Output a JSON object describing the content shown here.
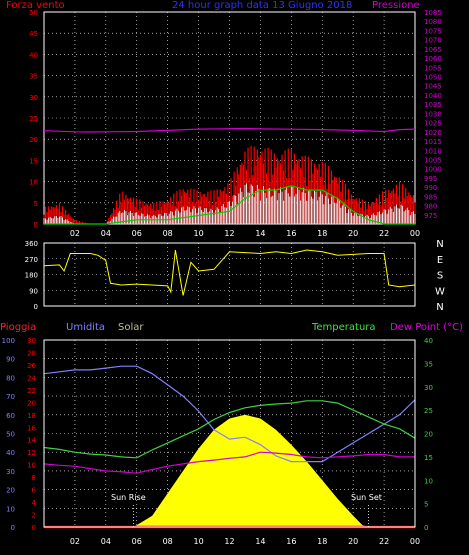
{
  "header": {
    "left": "Forza vento",
    "center": "24 hour graph data  13 Giugno 2018",
    "right": "Pressione"
  },
  "legend": {
    "pioggia": "Pioggia",
    "umidita": "Umidita",
    "solar": "Solar",
    "temperatura": "Temperatura",
    "dewpoint": "Dew Point (°C)"
  },
  "annotations": {
    "sunrise": "Sun Rise",
    "sunset": "Sun Set"
  },
  "colors": {
    "background": "#000000",
    "wind_speed": "#ff0000",
    "gust": "#ffffff",
    "wind_avg": "#00d000",
    "pressure": "#d000d0",
    "direction": "#ffff00",
    "solar": "#ffff00",
    "humidity": "#8080ff",
    "temperature": "#40d040",
    "dewpoint": "#d000d0",
    "rain": "#ff0000",
    "title_blue": "#3030ff",
    "axis_white": "#ffffff"
  },
  "chart_data": [
    {
      "type": "area",
      "title": "24 hour graph data  13 Giugno 2018",
      "xticks": [
        "02",
        "04",
        "06",
        "08",
        "10",
        "12",
        "14",
        "16",
        "18",
        "20",
        "22",
        "00"
      ],
      "yleft": {
        "label": "Forza vento",
        "range": [
          0,
          50
        ],
        "ticks": [
          0,
          5,
          10,
          15,
          20,
          25,
          30,
          35,
          40,
          45,
          50
        ]
      },
      "yright": {
        "label": "Pressione",
        "range": [
          970,
          1085
        ],
        "ticks": [
          975,
          980,
          985,
          990,
          995,
          1000,
          1005,
          1010,
          1015,
          1020,
          1025,
          1030,
          1035,
          1040,
          1045,
          1050,
          1055,
          1060,
          1065,
          1070,
          1075,
          1080,
          1085
        ]
      },
      "series": [
        {
          "name": "Pressione",
          "axis": "right",
          "x": [
            0,
            2,
            3,
            4,
            6,
            8,
            10,
            12,
            13,
            14,
            16,
            18,
            20,
            22,
            23,
            24
          ],
          "y": [
            1020.6,
            1020,
            1019.9,
            1020,
            1020.2,
            1020.8,
            1021.5,
            1021.7,
            1021.8,
            1021.6,
            1021.4,
            1021.2,
            1020.8,
            1020.2,
            1021.2,
            1021.5
          ]
        },
        {
          "name": "Forza vento",
          "axis": "left",
          "x": [
            0,
            1,
            2,
            3,
            4,
            5,
            6,
            7,
            8,
            9,
            10,
            11,
            12,
            13,
            14,
            15,
            16,
            17,
            18,
            19,
            20,
            21,
            22,
            23,
            24
          ],
          "y": [
            2,
            3,
            0,
            0,
            0,
            5,
            4,
            3,
            4,
            6,
            6,
            5,
            8,
            14,
            13,
            12,
            13,
            12,
            11,
            9,
            4,
            3,
            5,
            7,
            4
          ]
        },
        {
          "name": "Raffica",
          "axis": "left",
          "x": [
            0,
            1,
            2,
            3,
            4,
            5,
            6,
            7,
            8,
            9,
            10,
            11,
            12,
            13,
            14,
            15,
            16,
            17,
            18,
            19,
            20,
            21,
            22,
            23,
            24
          ],
          "y": [
            4,
            5,
            1,
            0,
            0,
            8,
            6,
            5,
            6,
            9,
            8,
            8,
            10,
            18,
            19,
            17,
            18,
            16,
            15,
            12,
            7,
            5,
            8,
            10,
            7
          ]
        },
        {
          "name": "Media",
          "axis": "left",
          "x": [
            0,
            4,
            6,
            8,
            10,
            12,
            13,
            14,
            15,
            16,
            17,
            18,
            19,
            20,
            21,
            22,
            24
          ],
          "y": [
            0,
            0,
            1,
            1,
            2,
            3,
            6,
            8,
            8,
            9,
            8,
            8,
            6,
            3,
            1,
            0,
            0
          ]
        }
      ]
    },
    {
      "type": "line",
      "xticks": [
        "02",
        "04",
        "06",
        "08",
        "10",
        "12",
        "14",
        "16",
        "18",
        "20",
        "22",
        "00"
      ],
      "yleft": {
        "range": [
          0,
          360
        ],
        "ticks": [
          0,
          90,
          180,
          270,
          360
        ]
      },
      "yright": {
        "ticks": [
          "N",
          "W",
          "S",
          "E",
          "N"
        ]
      },
      "series": [
        {
          "name": "Direzione",
          "x": [
            0,
            1,
            1.3,
            1.7,
            2.5,
            3,
            3.5,
            4,
            4.3,
            5,
            6,
            7,
            8,
            8.2,
            8.5,
            9,
            9.5,
            10,
            11,
            12,
            13,
            14,
            15,
            16,
            17,
            18,
            19,
            20,
            21,
            22,
            22.3,
            23,
            24
          ],
          "y": [
            230,
            235,
            200,
            300,
            300,
            300,
            290,
            260,
            130,
            120,
            125,
            120,
            115,
            80,
            320,
            60,
            250,
            200,
            210,
            310,
            305,
            300,
            310,
            300,
            320,
            310,
            290,
            295,
            300,
            300,
            120,
            110,
            120
          ]
        }
      ]
    },
    {
      "type": "line",
      "xticks": [
        "02",
        "04",
        "06",
        "08",
        "10",
        "12",
        "14",
        "16",
        "18",
        "20",
        "22",
        "00"
      ],
      "axes": {
        "umidita": {
          "label": "Umidita",
          "range": [
            0,
            100
          ],
          "ticks": [
            0,
            10,
            20,
            30,
            40,
            50,
            60,
            70,
            80,
            90,
            100
          ]
        },
        "pioggia": {
          "label": "Pioggia",
          "range": [
            0,
            30
          ],
          "ticks": [
            0,
            2,
            4,
            6,
            8,
            10,
            12,
            14,
            16,
            18,
            20,
            22,
            24,
            26,
            28,
            30
          ]
        },
        "temperatura": {
          "label": "Temperatura",
          "range": [
            0,
            40
          ],
          "ticks": [
            0,
            5,
            10,
            15,
            20,
            25,
            30,
            35,
            40
          ]
        }
      },
      "series": [
        {
          "name": "Umidita",
          "axis": "umidita",
          "x": [
            0,
            1,
            2,
            3,
            4,
            5,
            6,
            7,
            8,
            9,
            10,
            11,
            12,
            13,
            14,
            15,
            16,
            17,
            18,
            19,
            20,
            21,
            22,
            23,
            24
          ],
          "y": [
            82,
            83,
            84,
            84,
            85,
            86,
            86,
            82,
            76,
            70,
            62,
            52,
            47,
            48,
            44,
            38,
            35,
            35,
            35,
            40,
            45,
            50,
            55,
            60,
            68
          ]
        },
        {
          "name": "Temperatura",
          "axis": "temperatura",
          "x": [
            0,
            1,
            2,
            3,
            4,
            5,
            6,
            7,
            8,
            9,
            10,
            11,
            12,
            13,
            14,
            15,
            16,
            17,
            18,
            19,
            20,
            21,
            22,
            23,
            24
          ],
          "y": [
            17,
            16.6,
            16,
            15.6,
            15.4,
            15,
            14.8,
            16.5,
            18,
            19.5,
            21,
            23,
            24.5,
            25.5,
            26,
            26.3,
            26.5,
            27,
            27,
            26.5,
            25,
            23.5,
            22,
            21,
            19
          ]
        },
        {
          "name": "Dew Point",
          "axis": "temperatura",
          "x": [
            0,
            1,
            2,
            3,
            4,
            5,
            6,
            7,
            8,
            9,
            10,
            11,
            12,
            13,
            14,
            15,
            16,
            17,
            18,
            19,
            20,
            21,
            22,
            23,
            24
          ],
          "y": [
            13.5,
            13.2,
            13,
            12.5,
            12,
            11.8,
            11.5,
            12.3,
            13,
            13.5,
            14,
            14.3,
            14.7,
            15,
            16,
            15.8,
            15.5,
            15,
            14.8,
            15,
            15.2,
            15.5,
            15.5,
            15,
            15
          ]
        },
        {
          "name": "Solar",
          "axis": "umidita",
          "x": [
            5.8,
            7,
            8,
            9,
            10,
            11,
            12,
            13,
            14,
            15,
            16,
            17,
            18,
            19,
            20,
            20.6,
            21
          ],
          "y": [
            0,
            6,
            18,
            30,
            42,
            52,
            58,
            60,
            58,
            52,
            44,
            35,
            25,
            15,
            6,
            1,
            0
          ]
        },
        {
          "name": "Pioggia",
          "axis": "pioggia",
          "x": [
            0,
            24
          ],
          "y": [
            0,
            0
          ]
        }
      ]
    }
  ]
}
